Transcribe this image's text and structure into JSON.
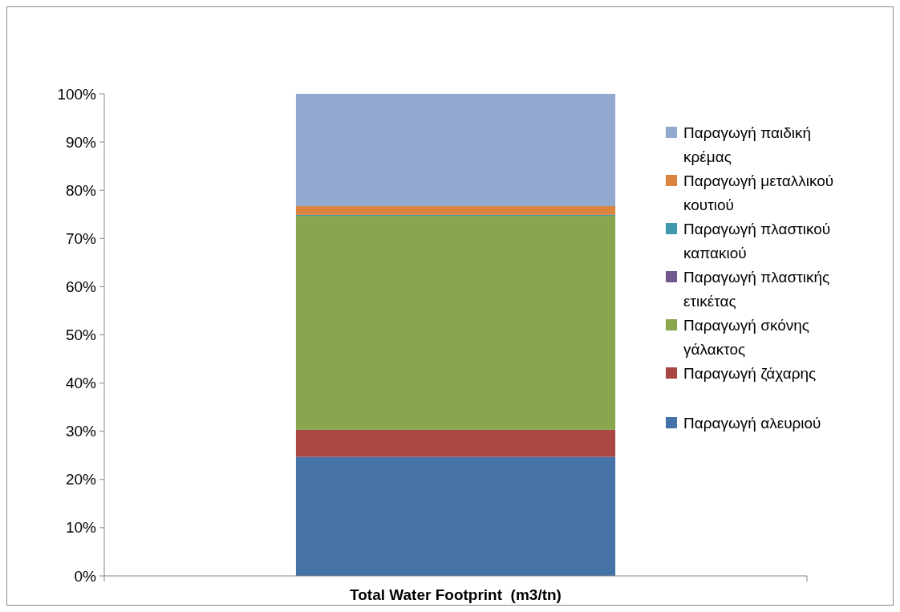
{
  "chart_data": {
    "type": "bar",
    "stacked": true,
    "xlabel": "Total Water Footprint  (m3/tn)",
    "categories": [
      null
    ],
    "series": [
      {
        "name": "Παραγωγή αλευριού",
        "color": "#4572a7",
        "values": [
          24.7
        ]
      },
      {
        "name": "Παραγωγή ζάχαρης",
        "color": "#aa4643",
        "values": [
          5.6
        ]
      },
      {
        "name": "Παραγωγή σκόνης γάλακτος",
        "color": "#89a54e",
        "values": [
          44.4
        ]
      },
      {
        "name": "Παραγωγή πλαστικής ετικέτας",
        "color": "#71588f",
        "values": [
          0
        ]
      },
      {
        "name": "Παραγωγή πλαστικού καπακιού",
        "color": "#4198af",
        "values": [
          0.2
        ]
      },
      {
        "name": "Παραγωγή μεταλλικού κουτιού",
        "color": "#db843d",
        "values": [
          1.8
        ]
      },
      {
        "name": "Παραγωγή παιδική κρέμας",
        "color": "#93a9cf",
        "values": [
          23.3
        ]
      }
    ],
    "ylim": [
      0,
      100
    ],
    "yticks": [
      {
        "value": 0,
        "label": "0%"
      },
      {
        "value": 10,
        "label": "10%"
      },
      {
        "value": 20,
        "label": "20%"
      },
      {
        "value": 30,
        "label": "30%"
      },
      {
        "value": 40,
        "label": "40%"
      },
      {
        "value": 50,
        "label": "50%"
      },
      {
        "value": 60,
        "label": "60%"
      },
      {
        "value": 70,
        "label": "70%"
      },
      {
        "value": 80,
        "label": "80%"
      },
      {
        "value": 90,
        "label": "90%"
      },
      {
        "value": 100,
        "label": "100%"
      }
    ],
    "legend": "right"
  }
}
